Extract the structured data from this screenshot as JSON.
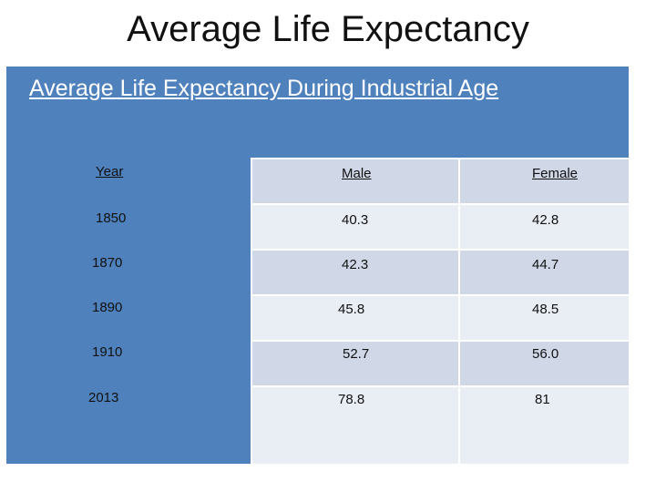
{
  "slide_title": "Average Life Expectancy",
  "table": {
    "caption": "Average Life Expectancy During Industrial Age",
    "headers": {
      "year": "Year",
      "male": "Male",
      "female": "Female"
    },
    "rows": [
      {
        "year": "1850",
        "male": "40.3",
        "female": "42.8"
      },
      {
        "year": "1870",
        "male": "42.3",
        "female": "44.7"
      },
      {
        "year": "1890",
        "male": "45.8",
        "female": "48.5"
      },
      {
        "year": "1910",
        "male": "52.7",
        "female": "56.0"
      },
      {
        "year": "2013",
        "male": "78.8",
        "female": "81"
      }
    ]
  }
}
